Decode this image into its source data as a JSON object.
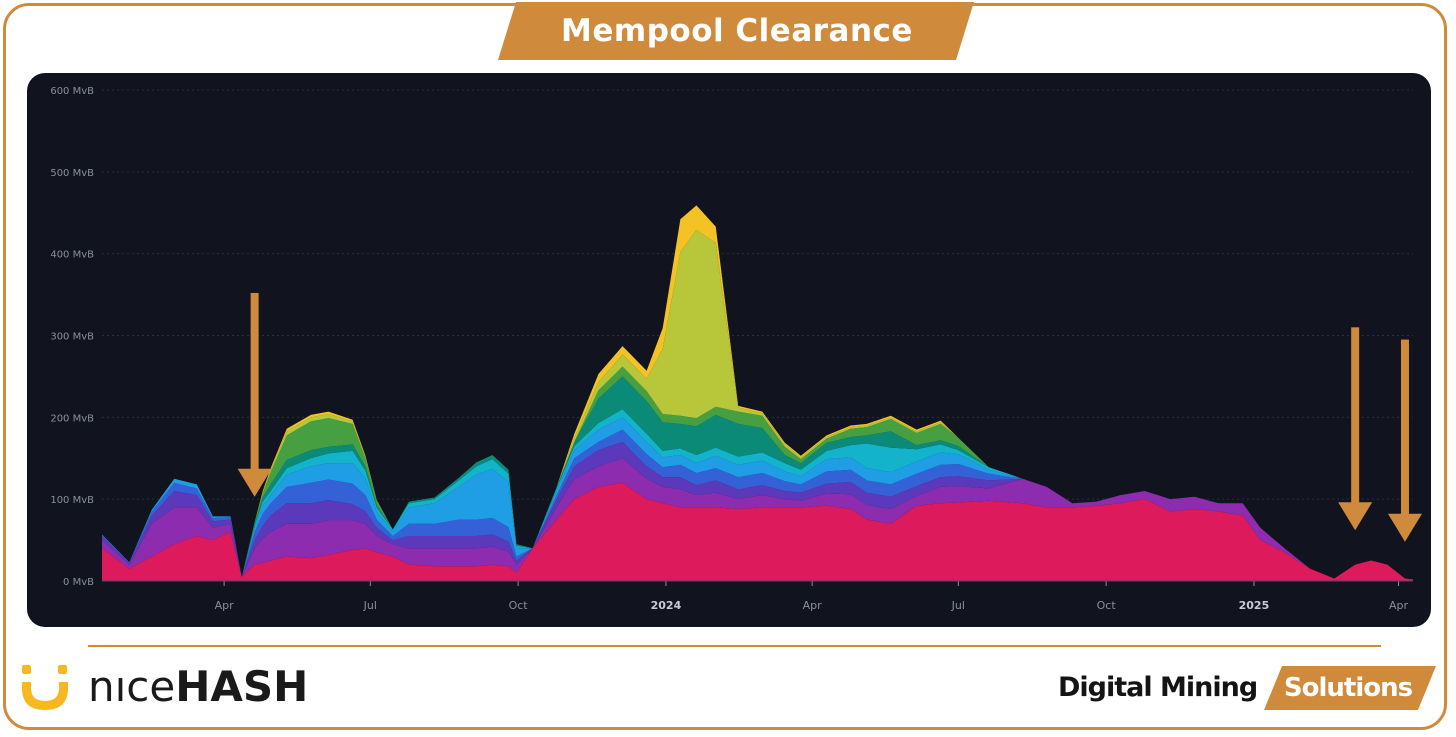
{
  "header": {
    "title": "Mempool Clearance"
  },
  "colors": {
    "accent": "#d08a3c",
    "panel_bg": "#11131e",
    "grid": "#2a2e3d",
    "axis_text": "#8b8f9c"
  },
  "chart_data": {
    "type": "area",
    "stacked": true,
    "title": "",
    "xlabel": "",
    "ylabel": "",
    "y_unit": "MvB",
    "ylim": [
      0,
      600
    ],
    "y_ticks": [
      {
        "value": 0,
        "label": "0 MvB"
      },
      {
        "value": 100,
        "label": "100 MvB"
      },
      {
        "value": 200,
        "label": "200 MvB"
      },
      {
        "value": 300,
        "label": "300 MvB"
      },
      {
        "value": 400,
        "label": "400 MvB"
      },
      {
        "value": 500,
        "label": "500 MvB"
      },
      {
        "value": 600,
        "label": "600 MvB"
      }
    ],
    "xlim": [
      "2023-01-15",
      "2025-04-10"
    ],
    "x_ticks": [
      {
        "date": "2023-04-01",
        "label": "Apr",
        "bold": false
      },
      {
        "date": "2023-07-01",
        "label": "Jul",
        "bold": false
      },
      {
        "date": "2023-10-01",
        "label": "Oct",
        "bold": false
      },
      {
        "date": "2024-01-01",
        "label": "2024",
        "bold": true
      },
      {
        "date": "2024-04-01",
        "label": "Apr",
        "bold": false
      },
      {
        "date": "2024-07-01",
        "label": "Jul",
        "bold": false
      },
      {
        "date": "2024-10-01",
        "label": "Oct",
        "bold": false
      },
      {
        "date": "2025-01-01",
        "label": "2025",
        "bold": true
      },
      {
        "date": "2025-04-01",
        "label": "Apr",
        "bold": false
      }
    ],
    "grid": true,
    "legend": "none",
    "series_colors": [
      "#dc1a5c",
      "#8d2cae",
      "#5b39ba",
      "#3461d6",
      "#1f9ee6",
      "#13b3cc",
      "#0b8a78",
      "#46a042",
      "#b8c63a",
      "#f3c224"
    ],
    "x": [
      "2023-01-15",
      "2023-02-01",
      "2023-02-15",
      "2023-03-01",
      "2023-03-15",
      "2023-03-25",
      "2023-04-05",
      "2023-04-12",
      "2023-04-20",
      "2023-04-25",
      "2023-04-30",
      "2023-05-10",
      "2023-05-25",
      "2023-06-05",
      "2023-06-20",
      "2023-06-28",
      "2023-07-05",
      "2023-07-15",
      "2023-07-25",
      "2023-08-10",
      "2023-08-25",
      "2023-09-05",
      "2023-09-15",
      "2023-09-25",
      "2023-09-30",
      "2023-10-10",
      "2023-10-25",
      "2023-11-05",
      "2023-11-20",
      "2023-12-05",
      "2023-12-20",
      "2023-12-30",
      "2024-01-10",
      "2024-01-20",
      "2024-02-01",
      "2024-02-15",
      "2024-03-01",
      "2024-03-15",
      "2024-03-25",
      "2024-04-10",
      "2024-04-25",
      "2024-05-05",
      "2024-05-20",
      "2024-06-05",
      "2024-06-20",
      "2024-07-01",
      "2024-07-20",
      "2024-08-10",
      "2024-08-25",
      "2024-09-10",
      "2024-09-25",
      "2024-10-10",
      "2024-10-25",
      "2024-11-10",
      "2024-11-25",
      "2024-12-10",
      "2024-12-25",
      "2025-01-05",
      "2025-01-20",
      "2025-02-05",
      "2025-02-20",
      "2025-03-05",
      "2025-03-15",
      "2025-03-25",
      "2025-04-05",
      "2025-04-10"
    ],
    "series": [
      {
        "values": [
          40,
          15,
          30,
          45,
          55,
          50,
          60,
          5,
          20,
          22,
          25,
          30,
          28,
          32,
          38,
          40,
          35,
          30,
          20,
          18,
          18,
          18,
          20,
          18,
          10,
          40,
          75,
          100,
          115,
          120,
          100,
          95,
          90,
          90,
          90,
          88,
          90,
          90,
          90,
          92,
          88,
          75,
          70,
          92,
          95,
          96,
          98,
          95,
          90,
          90,
          92,
          95,
          100,
          85,
          88,
          85,
          80,
          50,
          35,
          15,
          3,
          20,
          25,
          20,
          3,
          2
        ]
      },
      {
        "values": [
          10,
          5,
          40,
          45,
          35,
          15,
          10,
          0,
          20,
          30,
          35,
          40,
          42,
          42,
          36,
          30,
          20,
          15,
          20,
          22,
          22,
          22,
          22,
          18,
          10,
          0,
          15,
          25,
          25,
          30,
          25,
          20,
          22,
          15,
          18,
          12,
          15,
          10,
          8,
          15,
          18,
          18,
          18,
          12,
          20,
          20,
          15,
          30,
          25,
          5,
          5,
          10,
          10,
          15,
          15,
          10,
          15,
          15,
          5,
          0,
          0,
          0,
          0,
          0,
          0,
          0
        ]
      },
      {
        "values": [
          5,
          2,
          10,
          20,
          15,
          8,
          5,
          0,
          10,
          15,
          20,
          25,
          25,
          25,
          20,
          15,
          10,
          5,
          15,
          15,
          15,
          15,
          15,
          12,
          5,
          0,
          10,
          15,
          20,
          20,
          15,
          12,
          15,
          12,
          15,
          12,
          12,
          10,
          10,
          12,
          15,
          15,
          15,
          12,
          12,
          12,
          10,
          0,
          0,
          0,
          0,
          0,
          0,
          0,
          0,
          0,
          0,
          0,
          0,
          0,
          0,
          0,
          0,
          0,
          0,
          0
        ]
      },
      {
        "values": [
          2,
          1,
          5,
          10,
          8,
          4,
          3,
          0,
          10,
          15,
          15,
          20,
          25,
          25,
          25,
          20,
          10,
          5,
          15,
          15,
          20,
          20,
          20,
          18,
          5,
          0,
          5,
          10,
          10,
          15,
          15,
          12,
          15,
          15,
          15,
          15,
          15,
          12,
          10,
          15,
          15,
          15,
          15,
          15,
          15,
          15,
          8,
          0,
          0,
          0,
          0,
          0,
          0,
          0,
          0,
          0,
          0,
          0,
          0,
          0,
          0,
          0,
          0,
          0,
          0,
          0
        ]
      },
      {
        "values": [
          0,
          0,
          2,
          5,
          5,
          2,
          1,
          0,
          5,
          10,
          10,
          15,
          20,
          20,
          25,
          20,
          10,
          5,
          20,
          25,
          40,
          55,
          60,
          55,
          10,
          0,
          5,
          10,
          15,
          15,
          15,
          12,
          12,
          12,
          15,
          15,
          15,
          12,
          10,
          15,
          15,
          15,
          15,
          15,
          15,
          12,
          5,
          0,
          0,
          0,
          0,
          0,
          0,
          0,
          0,
          0,
          0,
          0,
          0,
          0,
          0,
          0,
          0,
          0,
          0,
          0
        ]
      },
      {
        "values": [
          0,
          0,
          0,
          0,
          0,
          0,
          0,
          0,
          3,
          5,
          5,
          8,
          10,
          12,
          15,
          10,
          5,
          3,
          5,
          5,
          8,
          10,
          12,
          10,
          3,
          0,
          3,
          5,
          8,
          10,
          10,
          8,
          8,
          10,
          10,
          10,
          10,
          10,
          8,
          10,
          15,
          30,
          30,
          15,
          10,
          5,
          3,
          0,
          0,
          0,
          0,
          0,
          0,
          0,
          0,
          0,
          0,
          0,
          0,
          0,
          0,
          0,
          0,
          0,
          0,
          0
        ]
      },
      {
        "values": [
          0,
          0,
          0,
          0,
          0,
          0,
          0,
          0,
          2,
          5,
          8,
          10,
          10,
          8,
          8,
          5,
          3,
          0,
          2,
          2,
          3,
          5,
          5,
          5,
          2,
          0,
          2,
          5,
          30,
          40,
          40,
          35,
          30,
          35,
          40,
          40,
          30,
          10,
          8,
          10,
          10,
          10,
          20,
          5,
          5,
          5,
          0,
          0,
          0,
          0,
          0,
          0,
          0,
          0,
          0,
          0,
          0,
          0,
          0,
          0,
          0,
          0,
          0,
          0,
          0,
          0
        ]
      },
      {
        "values": [
          0,
          0,
          0,
          0,
          0,
          0,
          0,
          0,
          2,
          5,
          15,
          30,
          35,
          35,
          25,
          10,
          5,
          0,
          0,
          0,
          0,
          0,
          0,
          0,
          0,
          0,
          0,
          0,
          10,
          12,
          12,
          10,
          10,
          10,
          10,
          15,
          15,
          10,
          5,
          5,
          10,
          10,
          15,
          15,
          20,
          10,
          0,
          0,
          0,
          0,
          0,
          0,
          0,
          0,
          0,
          0,
          0,
          0,
          0,
          0,
          0,
          0,
          0,
          0,
          0,
          0
        ]
      },
      {
        "values": [
          0,
          0,
          0,
          0,
          0,
          0,
          0,
          0,
          0,
          2,
          3,
          5,
          5,
          5,
          3,
          2,
          1,
          0,
          0,
          0,
          0,
          0,
          0,
          0,
          0,
          0,
          0,
          5,
          10,
          15,
          15,
          80,
          200,
          230,
          200,
          5,
          3,
          3,
          2,
          2,
          2,
          2,
          2,
          2,
          2,
          0,
          0,
          0,
          0,
          0,
          0,
          0,
          0,
          0,
          0,
          0,
          0,
          0,
          0,
          0,
          0,
          0,
          0,
          0,
          0,
          0
        ]
      },
      {
        "values": [
          0,
          0,
          0,
          0,
          0,
          0,
          0,
          0,
          0,
          1,
          2,
          3,
          3,
          3,
          2,
          1,
          0,
          0,
          0,
          0,
          0,
          0,
          0,
          0,
          0,
          0,
          0,
          5,
          10,
          10,
          10,
          25,
          40,
          30,
          20,
          2,
          2,
          2,
          2,
          2,
          2,
          2,
          2,
          2,
          2,
          0,
          0,
          0,
          0,
          0,
          0,
          0,
          0,
          0,
          0,
          0,
          0,
          0,
          0,
          0,
          0,
          0,
          0,
          0,
          0,
          0
        ]
      }
    ],
    "annotations": [
      {
        "type": "arrow-down",
        "date": "2023-04-20",
        "from_value": 352,
        "to_value": 103
      },
      {
        "type": "arrow-down",
        "date": "2025-03-05",
        "from_value": 310,
        "to_value": 62
      },
      {
        "type": "arrow-down",
        "date": "2025-04-05",
        "from_value": 295,
        "to_value": 48
      }
    ]
  },
  "branding": {
    "nicehash_logo_icon": "nicehash-smile-icon",
    "nicehash_text_thin": "nıce",
    "nicehash_text_bold": "HASH",
    "dms_word": "Digital Mining",
    "dms_solutions": "Solutions"
  }
}
